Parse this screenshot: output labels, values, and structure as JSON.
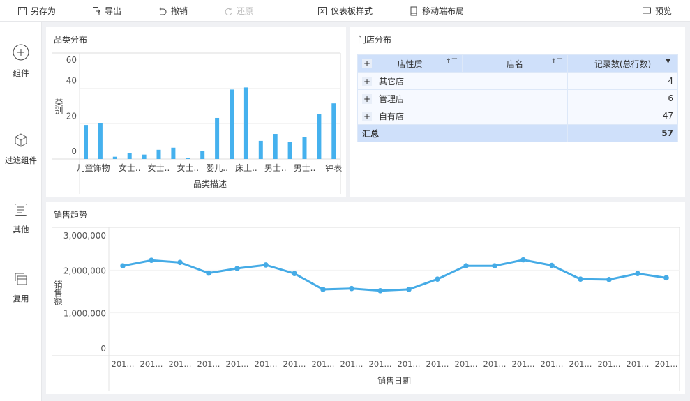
{
  "toolbar": {
    "save_as": "另存为",
    "export": "导出",
    "undo": "撤销",
    "redo": "还原",
    "dashboard_style": "仪表板样式",
    "mobile_layout": "移动端布局",
    "preview": "预览"
  },
  "sidebar": {
    "items": [
      {
        "label": "组件",
        "icon": "plus-circle-icon"
      },
      {
        "label": "过滤组件",
        "icon": "cube-icon"
      },
      {
        "label": "其他",
        "icon": "document-icon"
      },
      {
        "label": "复用",
        "icon": "copy-icon"
      }
    ]
  },
  "store_table": {
    "title": "门店分布",
    "headers": [
      "店性质",
      "店名",
      "记录数(总行数)"
    ],
    "rows": [
      {
        "type": "其它店",
        "count": "4"
      },
      {
        "type": "管理店",
        "count": "6"
      },
      {
        "type": "自有店",
        "count": "47"
      }
    ],
    "total": {
      "label": "汇总",
      "count": "57"
    },
    "header_color": "#cfe0fa"
  },
  "chart_data": [
    {
      "type": "bar",
      "title": "品类分布",
      "xlabel": "品类描述",
      "ylabel": "类别",
      "ylim": [
        0,
        60
      ],
      "yticks": [
        "0",
        "20",
        "40",
        "60"
      ],
      "tick_labels": [
        "儿童饰物",
        "女士..",
        "女士..",
        "女士..",
        "婴儿..",
        "床上..",
        "男士..",
        "男士..",
        "钟表"
      ],
      "values": [
        19.3,
        20.5,
        1.3,
        3.3,
        2.5,
        5.2,
        6.4,
        0.5,
        4.4,
        23.3,
        39.3,
        40.5,
        10.3,
        14.2,
        9.5,
        12.3,
        25.6,
        31.5
      ],
      "color": "#45b1ee",
      "grid": true
    },
    {
      "type": "line",
      "title": "销售趋势",
      "xlabel": "销售日期",
      "ylabel": "销售额",
      "ylim": [
        0,
        3000000
      ],
      "yticks": [
        "0",
        "1,000,000",
        "2,000,000",
        "3,000,000"
      ],
      "tick_labels": [
        "201...",
        "201...",
        "201...",
        "201...",
        "201...",
        "201...",
        "201...",
        "201...",
        "201...",
        "201...",
        "201...",
        "201...",
        "201...",
        "201...",
        "201...",
        "201...",
        "201...",
        "201...",
        "201...",
        "201..."
      ],
      "values": [
        2100000,
        2230000,
        2180000,
        1930000,
        2040000,
        2120000,
        1920000,
        1550000,
        1570000,
        1520000,
        1550000,
        1790000,
        2100000,
        2100000,
        2240000,
        2110000,
        1790000,
        1780000,
        1920000,
        1820000
      ],
      "color": "#45abe6",
      "grid": true
    }
  ]
}
